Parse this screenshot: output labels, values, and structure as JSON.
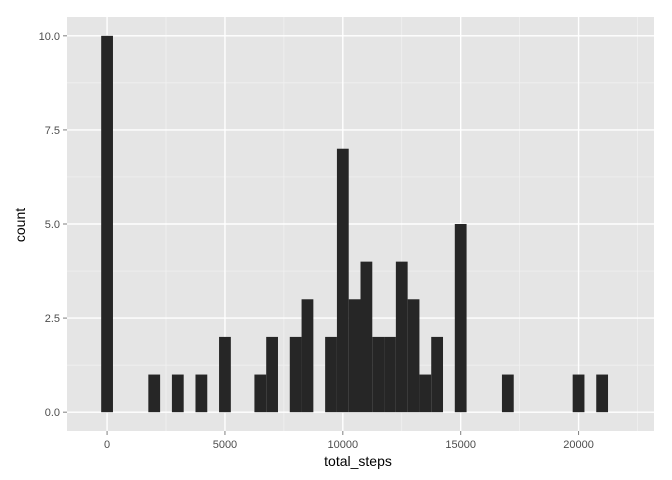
{
  "chart_data": {
    "type": "bar",
    "title": "",
    "xlabel": "total_steps",
    "ylabel": "count",
    "grid": true,
    "xlim": [
      -1700,
      23200
    ],
    "ylim": [
      -0.5,
      10.5
    ],
    "x_ticks": [
      0,
      5000,
      10000,
      15000,
      20000
    ],
    "y_ticks": [
      0.0,
      2.5,
      5.0,
      7.5,
      10.0
    ],
    "y_tick_labels": [
      "0.0",
      "2.5",
      "5.0",
      "7.5",
      "10.0"
    ],
    "bin_width": 500,
    "bins": [
      {
        "x": 0,
        "count": 10
      },
      {
        "x": 2000,
        "count": 1
      },
      {
        "x": 3000,
        "count": 1
      },
      {
        "x": 4000,
        "count": 1
      },
      {
        "x": 5000,
        "count": 2
      },
      {
        "x": 6500,
        "count": 1
      },
      {
        "x": 7000,
        "count": 2
      },
      {
        "x": 8000,
        "count": 2
      },
      {
        "x": 8500,
        "count": 3
      },
      {
        "x": 9500,
        "count": 2
      },
      {
        "x": 10000,
        "count": 7
      },
      {
        "x": 10500,
        "count": 3
      },
      {
        "x": 11000,
        "count": 4
      },
      {
        "x": 11500,
        "count": 2
      },
      {
        "x": 12000,
        "count": 2
      },
      {
        "x": 12500,
        "count": 4
      },
      {
        "x": 13000,
        "count": 3
      },
      {
        "x": 13500,
        "count": 1
      },
      {
        "x": 14000,
        "count": 2
      },
      {
        "x": 15000,
        "count": 5
      },
      {
        "x": 17000,
        "count": 1
      },
      {
        "x": 20000,
        "count": 1
      },
      {
        "x": 21000,
        "count": 1
      }
    ],
    "colors": {
      "panel": "#e5e5e5",
      "grid_major": "#ffffff",
      "grid_minor": "#f2f2f2",
      "bar": "#262626",
      "tick": "#7f7f7f"
    }
  }
}
